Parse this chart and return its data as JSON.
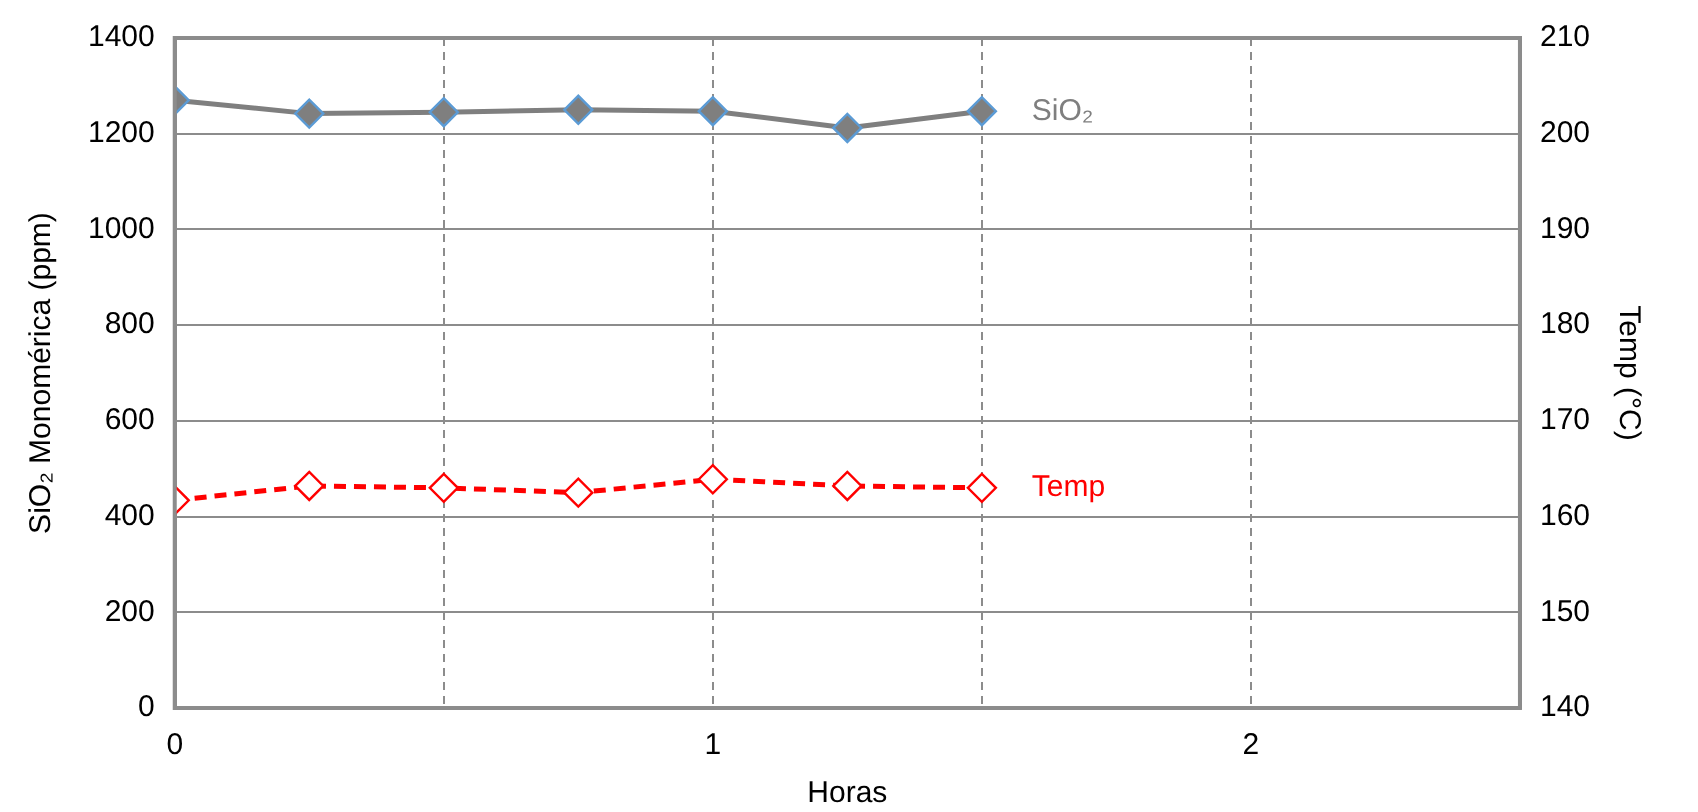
{
  "chart_data": {
    "type": "line",
    "xlabel": "Horas",
    "ylabel": "SiO₂ Monomérica (ppm)",
    "y2label": "Temp (°C)",
    "x": [
      0,
      0.25,
      0.5,
      0.75,
      1,
      1.25,
      1.5
    ],
    "xlim": [
      0,
      2.5
    ],
    "xticks": [
      0,
      {
        "value": 0.5,
        "label": null
      },
      1,
      {
        "value": 1.5,
        "label": null
      },
      2
    ],
    "ylim": [
      0,
      1400
    ],
    "yticks": [
      0,
      200,
      400,
      600,
      800,
      1000,
      1200,
      1400
    ],
    "y2lim": [
      140,
      210
    ],
    "y2ticks": [
      140,
      150,
      160,
      170,
      180,
      190,
      200,
      210
    ],
    "grid": true,
    "legend": false,
    "marker": "diamond",
    "series": [
      {
        "name": "SiO₂",
        "color": "#7f7f7f",
        "values": [
          1270,
          1242,
          1245,
          1250,
          1247,
          1212,
          1247
        ],
        "line_style": "solid"
      },
      {
        "name": "Temp",
        "color": "#ff0000",
        "axis": "y2",
        "values": [
          161.7,
          163.2,
          163.0,
          162.5,
          163.9,
          163.2,
          163.0
        ],
        "line_style": "dashed"
      }
    ]
  }
}
